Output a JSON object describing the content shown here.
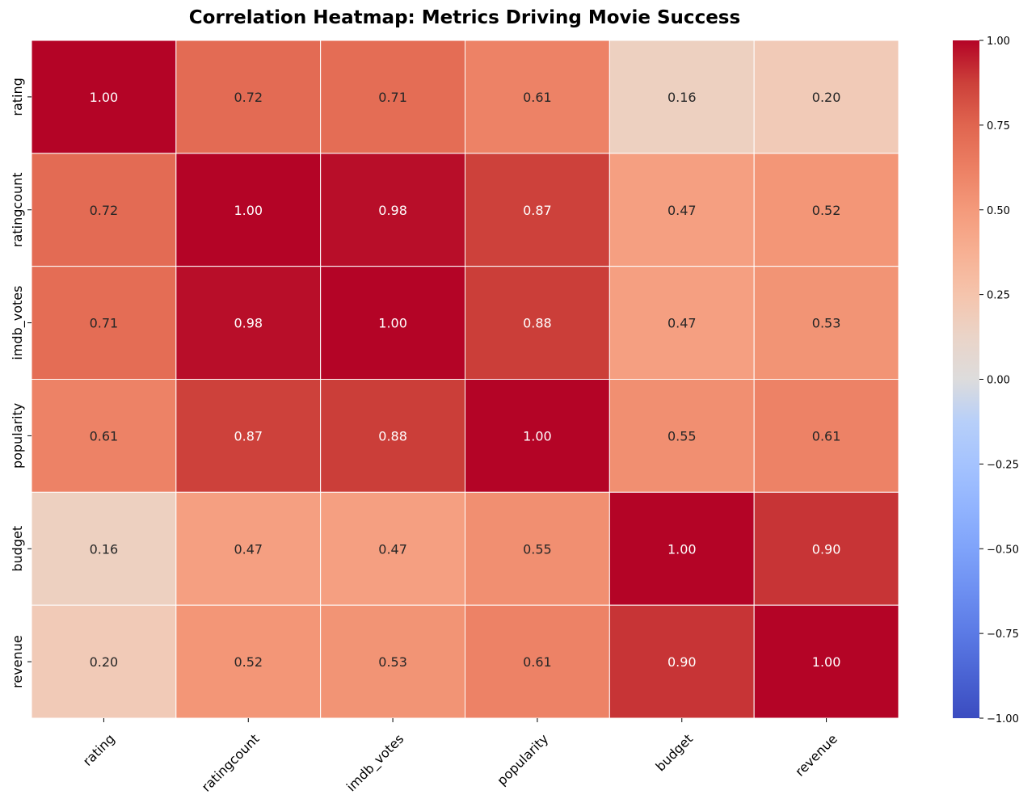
{
  "chart_data": {
    "type": "heatmap",
    "title": "Correlation Heatmap: Metrics Driving Movie Success",
    "xlabel": "",
    "ylabel": "",
    "rows": [
      "rating",
      "ratingcount",
      "imdb_votes",
      "popularity",
      "budget",
      "revenue"
    ],
    "columns": [
      "rating",
      "ratingcount",
      "imdb_votes",
      "popularity",
      "budget",
      "revenue"
    ],
    "values": [
      [
        1.0,
        0.72,
        0.71,
        0.61,
        0.16,
        0.2
      ],
      [
        0.72,
        1.0,
        0.98,
        0.87,
        0.47,
        0.52
      ],
      [
        0.71,
        0.98,
        1.0,
        0.88,
        0.47,
        0.53
      ],
      [
        0.61,
        0.87,
        0.88,
        1.0,
        0.55,
        0.61
      ],
      [
        0.16,
        0.47,
        0.47,
        0.55,
        1.0,
        0.9
      ],
      [
        0.2,
        0.52,
        0.53,
        0.61,
        0.9,
        1.0
      ]
    ],
    "value_range": [
      -1.0,
      1.0
    ],
    "colormap": "coolwarm",
    "colorbar_ticks": [
      "1.00",
      "0.75",
      "0.50",
      "0.25",
      "0.00",
      "−0.25",
      "−0.50",
      "−0.75",
      "−1.00"
    ],
    "colorbar_tick_values": [
      1.0,
      0.75,
      0.5,
      0.25,
      0.0,
      -0.25,
      -0.5,
      -0.75,
      -1.0
    ],
    "grid": false,
    "legend": "colorbar-right"
  }
}
